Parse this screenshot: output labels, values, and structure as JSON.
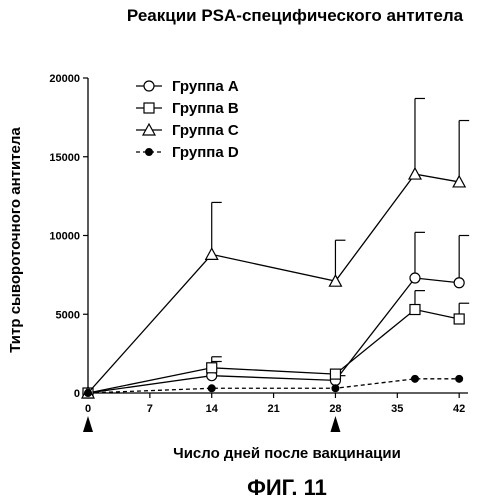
{
  "chart_data": {
    "type": "line",
    "title": "Реакции PSA-специфического антитела",
    "xlabel": "Число дней после вакцинации",
    "ylabel": "Титр сывороточного антитела",
    "x_ticks": [
      0,
      7,
      14,
      21,
      28,
      35,
      42
    ],
    "y_ticks": [
      0,
      5000,
      10000,
      15000,
      20000
    ],
    "xlim": [
      0,
      43
    ],
    "ylim": [
      0,
      20000
    ],
    "grid": false,
    "legend_position": "top-left",
    "vaccination_days": [
      0,
      28
    ],
    "series": [
      {
        "name": "Группа А",
        "marker": "circle-open",
        "line": "solid",
        "x": [
          0,
          14,
          28,
          37,
          42
        ],
        "y": [
          0,
          1100,
          800,
          7300,
          7000
        ],
        "error_upper": [
          0,
          2000,
          1100,
          10200,
          10000
        ]
      },
      {
        "name": "Группа В",
        "marker": "square-open",
        "line": "solid",
        "x": [
          0,
          14,
          28,
          37,
          42
        ],
        "y": [
          0,
          1600,
          1200,
          5300,
          4700
        ],
        "error_upper": [
          0,
          2300,
          1200,
          6500,
          5700
        ]
      },
      {
        "name": "Группа С",
        "marker": "triangle-open",
        "line": "solid",
        "x": [
          0,
          14,
          28,
          37,
          42
        ],
        "y": [
          0,
          8800,
          7100,
          13900,
          13400
        ],
        "error_upper": [
          0,
          12100,
          9700,
          18700,
          17300
        ]
      },
      {
        "name": "Группа D",
        "marker": "circle-filled",
        "line": "dashed",
        "x": [
          0,
          14,
          28,
          37,
          42
        ],
        "y": [
          0,
          300,
          300,
          900,
          900
        ],
        "error_upper": [
          0,
          0,
          0,
          0,
          0
        ]
      }
    ]
  },
  "figure_caption": "ФИГ. 11"
}
